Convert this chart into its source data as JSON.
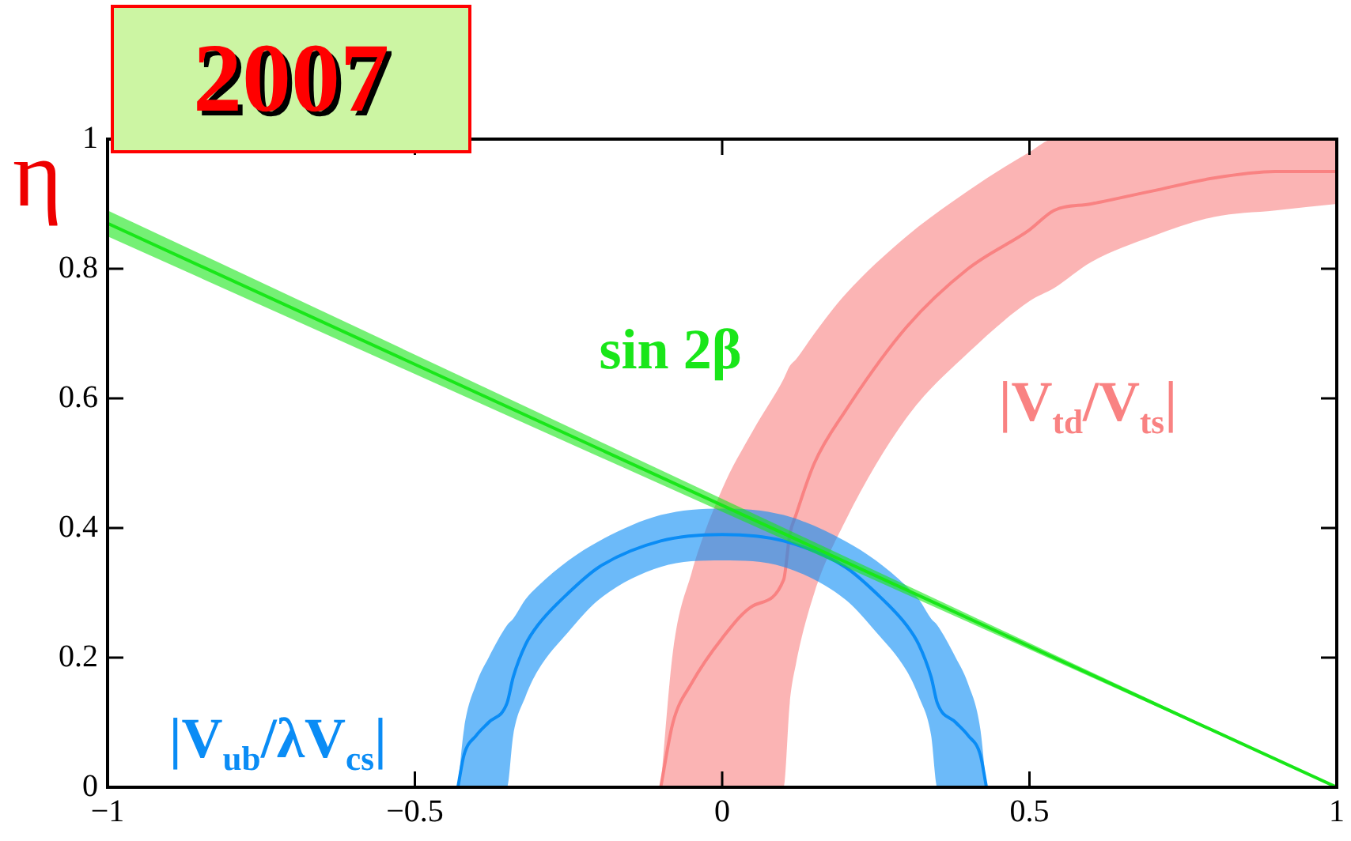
{
  "chart_data": {
    "type": "line",
    "title": "2007",
    "ylabel": "η",
    "xlim": [
      -1,
      1
    ],
    "xticks": [
      {
        "value": -1,
        "label": "−1"
      },
      {
        "value": -0.5,
        "label": "−0.5"
      },
      0,
      0.5,
      1
    ],
    "ylim": [
      0,
      1
    ],
    "yticks": [
      0,
      0.2,
      0.4,
      0.6,
      0.8,
      1
    ],
    "grid": false,
    "legend": false,
    "series": [
      {
        "name": "sin 2β",
        "color": "#19e619",
        "x": [
          -1,
          1
        ],
        "values": [
          0.87,
          0
        ],
        "lower": [
          0.85,
          0
        ],
        "upper": [
          0.89,
          0
        ]
      },
      {
        "name": "|V$_{ub}$/λV$_{cs}$|",
        "color": "#0a8cf5",
        "x": [
          -0.43,
          -0.42,
          -0.4,
          -0.38,
          -0.35,
          -0.34,
          -0.32,
          -0.3,
          -0.25,
          -0.2,
          -0.1,
          0,
          0.1,
          0.2,
          0.25,
          0.3,
          0.32,
          0.34,
          0.35,
          0.38,
          0.4,
          0.42,
          0.43
        ],
        "values": [
          0,
          0.05,
          0.08,
          0.1,
          0.13,
          0.17,
          0.22,
          0.25,
          0.3,
          0.34,
          0.38,
          0.39,
          0.38,
          0.34,
          0.3,
          0.25,
          0.22,
          0.17,
          0.13,
          0.1,
          0.08,
          0.05,
          0
        ],
        "lower": [
          0,
          0,
          0,
          0,
          0,
          0.08,
          0.14,
          0.18,
          0.24,
          0.29,
          0.34,
          0.35,
          0.34,
          0.29,
          0.24,
          0.18,
          0.14,
          0.08,
          0,
          0,
          0,
          0,
          0
        ],
        "upper": [
          0,
          0.09,
          0.16,
          0.2,
          0.25,
          0.26,
          0.29,
          0.31,
          0.35,
          0.38,
          0.42,
          0.43,
          0.42,
          0.38,
          0.35,
          0.31,
          0.29,
          0.26,
          0.25,
          0.2,
          0.16,
          0.09,
          0
        ]
      },
      {
        "name": "|V$_{td}$/V$_{ts}$|",
        "color": "#f98282",
        "x": [
          -0.1,
          -0.08,
          -0.05,
          0,
          0.05,
          0.1,
          0.11,
          0.12,
          0.15,
          0.2,
          0.3,
          0.4,
          0.5,
          0.54,
          0.6,
          0.7,
          0.8,
          0.9,
          1
        ],
        "values": [
          0,
          0.1,
          0.16,
          0.23,
          0.28,
          0.32,
          0.39,
          0.42,
          0.5,
          0.58,
          0.71,
          0.8,
          0.86,
          0.89,
          0.9,
          0.92,
          0.94,
          0.95,
          0.95
        ],
        "lower": [
          0,
          0,
          0,
          0,
          0,
          0,
          0.13,
          0.19,
          0.3,
          0.41,
          0.57,
          0.67,
          0.75,
          0.77,
          0.81,
          0.85,
          0.88,
          0.89,
          0.9
        ],
        "upper": [
          0,
          0.21,
          0.33,
          0.46,
          0.55,
          0.63,
          0.65,
          0.66,
          0.7,
          0.76,
          0.85,
          0.92,
          0.98,
          1,
          1,
          1,
          1,
          1,
          1
        ]
      }
    ]
  }
}
